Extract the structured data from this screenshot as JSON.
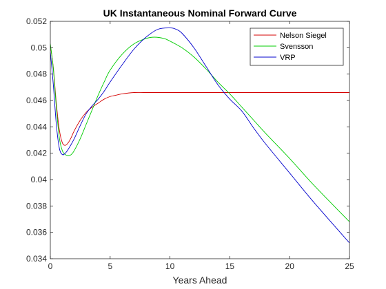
{
  "chart_data": {
    "type": "line",
    "title": "UK Instantaneous Nominal Forward Curve",
    "xlabel": "Years Ahead",
    "ylabel": "",
    "xlim": [
      0,
      25
    ],
    "ylim": [
      0.034,
      0.052
    ],
    "xticks": [
      0,
      5,
      10,
      15,
      20,
      25
    ],
    "yticks": [
      0.034,
      0.036,
      0.038,
      0.04,
      0.042,
      0.044,
      0.046,
      0.048,
      0.05,
      0.052
    ],
    "xtick_labels": [
      "0",
      "5",
      "10",
      "15",
      "20",
      "25"
    ],
    "ytick_labels": [
      "0.034",
      "0.036",
      "0.038",
      "0.04",
      "0.042",
      "0.044",
      "0.046",
      "0.048",
      "0.05",
      "0.052"
    ],
    "grid": false,
    "legend_position": "top-right",
    "series": [
      {
        "name": "Nelson Siegel",
        "color": "#d40000",
        "x": [
          0,
          0.25,
          0.5,
          0.75,
          1,
          1.25,
          1.5,
          1.75,
          2,
          2.5,
          3,
          3.5,
          4,
          4.5,
          5,
          5.5,
          6,
          7,
          8,
          10,
          12,
          15,
          20,
          25
        ],
        "y": [
          0.0502,
          0.0485,
          0.0458,
          0.0438,
          0.0428,
          0.0426,
          0.0428,
          0.0432,
          0.0437,
          0.0445,
          0.0451,
          0.0455,
          0.0458,
          0.0461,
          0.0463,
          0.0464,
          0.0465,
          0.0466,
          0.0466,
          0.0466,
          0.0466,
          0.0466,
          0.0466,
          0.0466
        ]
      },
      {
        "name": "Svensson",
        "color": "#00cc00",
        "x": [
          0,
          0.25,
          0.5,
          0.75,
          1,
          1.25,
          1.5,
          1.75,
          2,
          2.5,
          3,
          3.5,
          4,
          4.5,
          5,
          6,
          7,
          8,
          8.7,
          9.5,
          10,
          11,
          12,
          13,
          14,
          15,
          16,
          17,
          18,
          20,
          22,
          25
        ],
        "y": [
          0.0503,
          0.0484,
          0.0455,
          0.0432,
          0.0422,
          0.0419,
          0.0418,
          0.0419,
          0.0422,
          0.0431,
          0.0442,
          0.0453,
          0.0464,
          0.0474,
          0.0483,
          0.0495,
          0.0503,
          0.0507,
          0.0508,
          0.0507,
          0.0505,
          0.05,
          0.0493,
          0.0484,
          0.0474,
          0.0465,
          0.0455,
          0.0445,
          0.0435,
          0.0416,
          0.0396,
          0.0368
        ]
      },
      {
        "name": "VRP",
        "color": "#0000cc",
        "x": [
          0,
          0.25,
          0.5,
          0.75,
          1,
          1.25,
          1.5,
          2,
          2.5,
          3,
          3.5,
          4,
          4.5,
          5,
          6,
          7,
          8,
          9,
          10,
          10.5,
          11,
          12,
          13,
          14,
          15,
          16,
          17,
          18,
          20,
          22,
          25
        ],
        "y": [
          0.0497,
          0.0472,
          0.0442,
          0.0424,
          0.0419,
          0.042,
          0.0423,
          0.0431,
          0.0441,
          0.045,
          0.0456,
          0.0461,
          0.0467,
          0.0474,
          0.0487,
          0.0499,
          0.0508,
          0.0514,
          0.0515,
          0.0514,
          0.0511,
          0.05,
          0.0486,
          0.0472,
          0.0461,
          0.0452,
          0.0439,
          0.0427,
          0.0405,
          0.0383,
          0.0352
        ]
      }
    ]
  }
}
